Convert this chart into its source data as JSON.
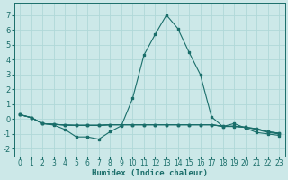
{
  "xlabel": "Humidex (Indice chaleur)",
  "bg_color": "#cce8e8",
  "line_color": "#1a6e6a",
  "grid_color": "#b0d8d8",
  "xlim": [
    -0.5,
    23.5
  ],
  "ylim": [
    -2.5,
    7.8
  ],
  "xticks": [
    0,
    1,
    2,
    3,
    4,
    5,
    6,
    7,
    8,
    9,
    10,
    11,
    12,
    13,
    14,
    15,
    16,
    17,
    18,
    19,
    20,
    21,
    22,
    23
  ],
  "yticks": [
    -2,
    -1,
    0,
    1,
    2,
    3,
    4,
    5,
    6,
    7
  ],
  "series": [
    [
      0.3,
      0.1,
      -0.3,
      -0.4,
      -0.7,
      -1.2,
      -1.2,
      -1.35,
      -0.85,
      -0.45,
      1.4,
      4.3,
      5.7,
      7.0,
      6.1,
      4.5,
      3.0,
      0.15,
      -0.5,
      -0.3,
      -0.6,
      -0.9,
      -1.0,
      -1.1
    ],
    [
      0.3,
      0.1,
      -0.3,
      -0.35,
      -0.4,
      -0.42,
      -0.42,
      -0.42,
      -0.38,
      -0.38,
      -0.38,
      -0.38,
      -0.38,
      -0.38,
      -0.38,
      -0.38,
      -0.38,
      -0.38,
      -0.5,
      -0.5,
      -0.55,
      -0.7,
      -0.9,
      -1.0
    ],
    [
      0.3,
      0.1,
      -0.3,
      -0.35,
      -0.4,
      -0.42,
      -0.42,
      -0.42,
      -0.38,
      -0.38,
      -0.38,
      -0.38,
      -0.38,
      -0.38,
      -0.38,
      -0.38,
      -0.38,
      -0.38,
      -0.48,
      -0.48,
      -0.55,
      -0.65,
      -0.85,
      -0.95
    ],
    [
      0.3,
      0.1,
      -0.3,
      -0.35,
      -0.4,
      -0.42,
      -0.42,
      -0.42,
      -0.38,
      -0.38,
      -0.38,
      -0.38,
      -0.38,
      -0.38,
      -0.38,
      -0.38,
      -0.38,
      -0.38,
      -0.48,
      -0.48,
      -0.55,
      -0.65,
      -0.85,
      -0.95
    ]
  ]
}
